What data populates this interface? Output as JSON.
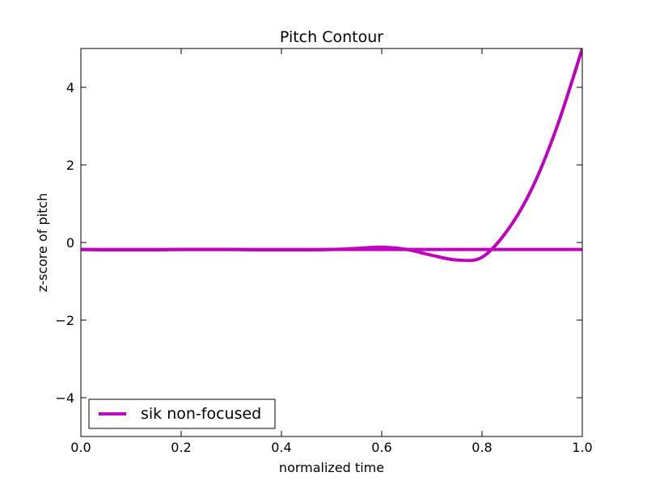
{
  "chart_data": {
    "type": "line",
    "title": "Pitch Contour",
    "xlabel": "normalized time",
    "ylabel": "z-score of pitch",
    "xlim": [
      0.0,
      1.0
    ],
    "ylim": [
      -5,
      5
    ],
    "xticks": [
      0.0,
      0.2,
      0.4,
      0.6,
      0.8,
      1.0
    ],
    "xtick_labels": [
      "0.0",
      "0.2",
      "0.4",
      "0.6",
      "0.8",
      "1.0"
    ],
    "yticks": [
      -4,
      -2,
      0,
      2,
      4
    ],
    "ytick_labels": [
      "−4",
      "−2",
      "0",
      "2",
      "4"
    ],
    "grid": false,
    "legend_position": "lower-left",
    "series": [
      {
        "name": "sik non-focused",
        "color": "#bf00bf",
        "x": [
          0.0,
          0.05,
          0.1,
          0.15,
          0.2,
          0.25,
          0.3,
          0.35,
          0.4,
          0.45,
          0.5,
          0.55,
          0.6,
          0.65,
          0.7,
          0.75,
          0.8,
          0.85,
          0.9,
          0.95,
          1.0
        ],
        "y": [
          -0.18,
          -0.19,
          -0.19,
          -0.19,
          -0.18,
          -0.18,
          -0.18,
          -0.19,
          -0.19,
          -0.19,
          -0.18,
          -0.15,
          -0.12,
          -0.18,
          -0.33,
          -0.45,
          -0.38,
          0.3,
          1.4,
          3.0,
          5.0
        ]
      },
      {
        "name": "",
        "color": "#bf00bf",
        "x": [
          0.0,
          0.1,
          0.2,
          0.3,
          0.4,
          0.5,
          0.6,
          0.7,
          0.8,
          0.9,
          1.0
        ],
        "y": [
          -0.18,
          -0.18,
          -0.18,
          -0.18,
          -0.18,
          -0.18,
          -0.18,
          -0.18,
          -0.18,
          -0.18,
          -0.18
        ]
      }
    ]
  }
}
